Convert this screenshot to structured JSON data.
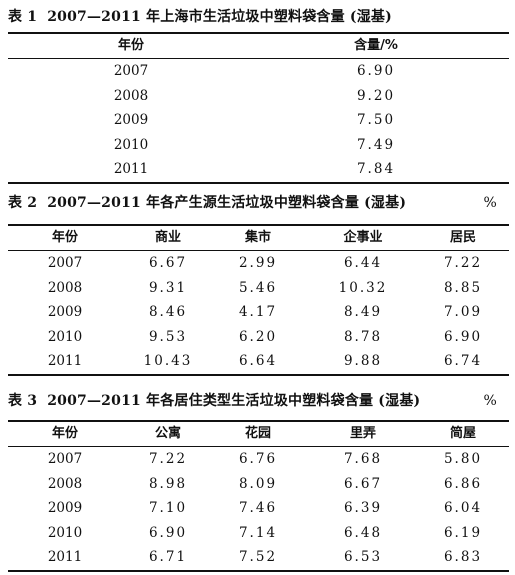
{
  "table1": {
    "caption_num": "表 1",
    "caption_title": "2007—2011 年上海市生活垃圾中塑料袋含量 (湿基)",
    "caption_unit": "",
    "headers": [
      "年份",
      "含量/%"
    ],
    "rows": [
      [
        "2007",
        "6.90"
      ],
      [
        "2008",
        "9.20"
      ],
      [
        "2009",
        "7.50"
      ],
      [
        "2010",
        "7.49"
      ],
      [
        "2011",
        "7.84"
      ]
    ]
  },
  "table2": {
    "caption_num": "表 2",
    "caption_title": "2007—2011 年各产生源生活垃圾中塑料袋含量 (湿基)",
    "caption_unit": "%",
    "headers": [
      "年份",
      "商业",
      "集市",
      "企事业",
      "居民"
    ],
    "rows": [
      [
        "2007",
        "6.67",
        "2.99",
        "6.44",
        "7.22"
      ],
      [
        "2008",
        "9.31",
        "5.46",
        "10.32",
        "8.85"
      ],
      [
        "2009",
        "8.46",
        "4.17",
        "8.49",
        "7.09"
      ],
      [
        "2010",
        "9.53",
        "6.20",
        "8.78",
        "6.90"
      ],
      [
        "2011",
        "10.43",
        "6.64",
        "9.88",
        "6.74"
      ]
    ]
  },
  "table3": {
    "caption_num": "表 3",
    "caption_title": "2007—2011 年各居住类型生活垃圾中塑料袋含量 (湿基)",
    "caption_unit": "%",
    "headers": [
      "年份",
      "公寓",
      "花园",
      "里弄",
      "简屋"
    ],
    "rows": [
      [
        "2007",
        "7.22",
        "6.76",
        "7.68",
        "5.80"
      ],
      [
        "2008",
        "8.98",
        "8.09",
        "6.67",
        "6.86"
      ],
      [
        "2009",
        "7.10",
        "7.46",
        "6.39",
        "6.04"
      ],
      [
        "2010",
        "6.90",
        "7.14",
        "6.48",
        "6.19"
      ],
      [
        "2011",
        "6.71",
        "7.52",
        "6.53",
        "6.83"
      ]
    ]
  }
}
